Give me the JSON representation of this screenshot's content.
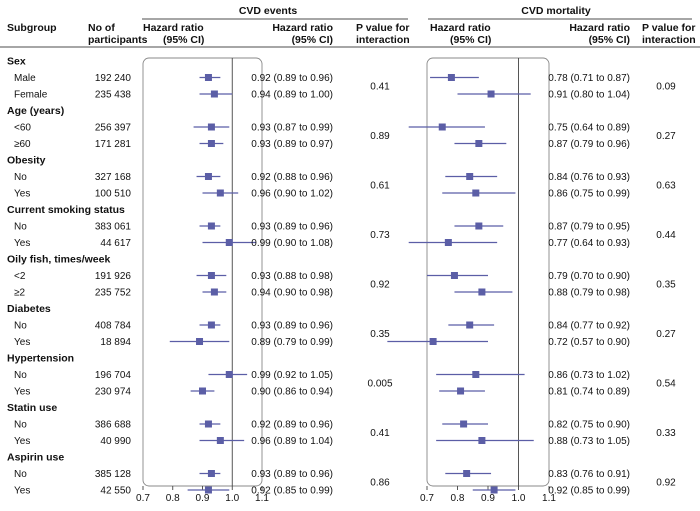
{
  "headers": {
    "subgroup": "Subgroup",
    "participants": [
      "No of",
      "participants"
    ],
    "panels": [
      "CVD events",
      "CVD mortality"
    ],
    "hr_plot": [
      "Hazard ratio",
      "(95% CI)"
    ],
    "hr_text": [
      "Hazard ratio",
      "(95% CI)"
    ],
    "p_interaction": [
      "P value for",
      "interaction"
    ]
  },
  "colors": {
    "marker": "#5b5ea6",
    "line": "#5b5ea6",
    "axis": "#444444",
    "frame": "#888888"
  },
  "chart_data": [
    {
      "type": "forest",
      "title": "CVD events",
      "xticks": [
        "0.7",
        "0.8",
        "0.9",
        "1.0",
        "1.1"
      ],
      "xlim": [
        0.7,
        1.1
      ],
      "reference_line": 1.0,
      "groups": [
        {
          "name": "Sex",
          "p_interaction": "0.41",
          "rows": [
            {
              "label": "Male",
              "n": "192 240",
              "hr": 0.92,
              "lo": 0.89,
              "hi": 0.96,
              "text": "0.92 (0.89 to 0.96)"
            },
            {
              "label": "Female",
              "n": "235 438",
              "hr": 0.94,
              "lo": 0.89,
              "hi": 1.0,
              "text": "0.94 (0.89 to 1.00)"
            }
          ]
        },
        {
          "name": "Age (years)",
          "p_interaction": "0.89",
          "rows": [
            {
              "label": "<60",
              "n": "256 397",
              "hr": 0.93,
              "lo": 0.87,
              "hi": 0.99,
              "text": "0.93 (0.87 to 0.99)"
            },
            {
              "label": "≥60",
              "n": "171 281",
              "hr": 0.93,
              "lo": 0.89,
              "hi": 0.97,
              "text": "0.93 (0.89 to 0.97)"
            }
          ]
        },
        {
          "name": "Obesity",
          "p_interaction": "0.61",
          "rows": [
            {
              "label": "No",
              "n": "327 168",
              "hr": 0.92,
              "lo": 0.88,
              "hi": 0.96,
              "text": "0.92 (0.88 to 0.96)"
            },
            {
              "label": "Yes",
              "n": "100 510",
              "hr": 0.96,
              "lo": 0.9,
              "hi": 1.02,
              "text": "0.96 (0.90 to 1.02)"
            }
          ]
        },
        {
          "name": "Current smoking status",
          "p_interaction": "0.73",
          "rows": [
            {
              "label": "No",
              "n": "383 061",
              "hr": 0.93,
              "lo": 0.89,
              "hi": 0.96,
              "text": "0.93 (0.89 to 0.96)"
            },
            {
              "label": "Yes",
              "n": "44 617",
              "hr": 0.99,
              "lo": 0.9,
              "hi": 1.08,
              "text": "0.99 (0.90 to 1.08)"
            }
          ]
        },
        {
          "name": "Oily fish, times/week",
          "p_interaction": "0.92",
          "rows": [
            {
              "label": "<2",
              "n": "191 926",
              "hr": 0.93,
              "lo": 0.88,
              "hi": 0.98,
              "text": "0.93 (0.88 to 0.98)"
            },
            {
              "label": "≥2",
              "n": "235 752",
              "hr": 0.94,
              "lo": 0.9,
              "hi": 0.98,
              "text": "0.94 (0.90 to 0.98)"
            }
          ]
        },
        {
          "name": "Diabetes",
          "p_interaction": "0.35",
          "rows": [
            {
              "label": "No",
              "n": "408 784",
              "hr": 0.93,
              "lo": 0.89,
              "hi": 0.96,
              "text": "0.93 (0.89 to 0.96)"
            },
            {
              "label": "Yes",
              "n": "18 894",
              "hr": 0.89,
              "lo": 0.79,
              "hi": 0.99,
              "text": "0.89 (0.79 to 0.99)"
            }
          ]
        },
        {
          "name": "Hypertension",
          "p_interaction": "0.005",
          "rows": [
            {
              "label": "No",
              "n": "196 704",
              "hr": 0.99,
              "lo": 0.92,
              "hi": 1.05,
              "text": "0.99 (0.92 to 1.05)"
            },
            {
              "label": "Yes",
              "n": "230 974",
              "hr": 0.9,
              "lo": 0.86,
              "hi": 0.94,
              "text": "0.90 (0.86 to 0.94)"
            }
          ]
        },
        {
          "name": "Statin use",
          "p_interaction": "0.41",
          "rows": [
            {
              "label": "No",
              "n": "386 688",
              "hr": 0.92,
              "lo": 0.89,
              "hi": 0.96,
              "text": "0.92 (0.89 to 0.96)"
            },
            {
              "label": "Yes",
              "n": "40 990",
              "hr": 0.96,
              "lo": 0.89,
              "hi": 1.04,
              "text": "0.96 (0.89 to 1.04)"
            }
          ]
        },
        {
          "name": "Aspirin use",
          "p_interaction": "0.86",
          "rows": [
            {
              "label": "No",
              "n": "385 128",
              "hr": 0.93,
              "lo": 0.89,
              "hi": 0.96,
              "text": "0.93 (0.89 to 0.96)"
            },
            {
              "label": "Yes",
              "n": "42 550",
              "hr": 0.92,
              "lo": 0.85,
              "hi": 0.99,
              "text": "0.92 (0.85 to 0.99)"
            }
          ]
        }
      ]
    },
    {
      "type": "forest",
      "title": "CVD mortality",
      "xticks": [
        "0.7",
        "0.8",
        "0.9",
        "1.0",
        "1.1"
      ],
      "xlim": [
        0.7,
        1.1
      ],
      "reference_line": 1.0,
      "groups": [
        {
          "name": "Sex",
          "p_interaction": "0.09",
          "rows": [
            {
              "label": "Male",
              "hr": 0.78,
              "lo": 0.71,
              "hi": 0.87,
              "text": "0.78 (0.71 to 0.87)"
            },
            {
              "label": "Female",
              "hr": 0.91,
              "lo": 0.8,
              "hi": 1.04,
              "text": "0.91 (0.80 to 1.04)"
            }
          ]
        },
        {
          "name": "Age (years)",
          "p_interaction": "0.27",
          "rows": [
            {
              "label": "<60",
              "hr": 0.75,
              "lo": 0.64,
              "hi": 0.89,
              "text": "0.75 (0.64 to 0.89)"
            },
            {
              "label": "≥60",
              "hr": 0.87,
              "lo": 0.79,
              "hi": 0.96,
              "text": "0.87 (0.79 to 0.96)"
            }
          ]
        },
        {
          "name": "Obesity",
          "p_interaction": "0.63",
          "rows": [
            {
              "label": "No",
              "hr": 0.84,
              "lo": 0.76,
              "hi": 0.93,
              "text": "0.84 (0.76 to 0.93)"
            },
            {
              "label": "Yes",
              "hr": 0.86,
              "lo": 0.75,
              "hi": 0.99,
              "text": "0.86 (0.75 to 0.99)"
            }
          ]
        },
        {
          "name": "Current smoking status",
          "p_interaction": "0.44",
          "rows": [
            {
              "label": "No",
              "hr": 0.87,
              "lo": 0.79,
              "hi": 0.95,
              "text": "0.87 (0.79 to 0.95)"
            },
            {
              "label": "Yes",
              "hr": 0.77,
              "lo": 0.64,
              "hi": 0.93,
              "text": "0.77 (0.64 to 0.93)"
            }
          ]
        },
        {
          "name": "Oily fish, times/week",
          "p_interaction": "0.35",
          "rows": [
            {
              "label": "<2",
              "hr": 0.79,
              "lo": 0.7,
              "hi": 0.9,
              "text": "0.79 (0.70 to 0.90)"
            },
            {
              "label": "≥2",
              "hr": 0.88,
              "lo": 0.79,
              "hi": 0.98,
              "text": "0.88 (0.79 to 0.98)"
            }
          ]
        },
        {
          "name": "Diabetes",
          "p_interaction": "0.27",
          "rows": [
            {
              "label": "No",
              "hr": 0.84,
              "lo": 0.77,
              "hi": 0.92,
              "text": "0.84 (0.77 to 0.92)"
            },
            {
              "label": "Yes",
              "hr": 0.72,
              "lo": 0.57,
              "hi": 0.9,
              "text": "0.72 (0.57 to 0.90)"
            }
          ]
        },
        {
          "name": "Hypertension",
          "p_interaction": "0.54",
          "rows": [
            {
              "label": "No",
              "hr": 0.86,
              "lo": 0.73,
              "hi": 1.02,
              "text": "0.86 (0.73 to 1.02)"
            },
            {
              "label": "Yes",
              "hr": 0.81,
              "lo": 0.74,
              "hi": 0.89,
              "text": "0.81 (0.74 to 0.89)"
            }
          ]
        },
        {
          "name": "Statin use",
          "p_interaction": "0.33",
          "rows": [
            {
              "label": "No",
              "hr": 0.82,
              "lo": 0.75,
              "hi": 0.9,
              "text": "0.82 (0.75 to 0.90)"
            },
            {
              "label": "Yes",
              "hr": 0.88,
              "lo": 0.73,
              "hi": 1.05,
              "text": "0.88 (0.73 to 1.05)"
            }
          ]
        },
        {
          "name": "Aspirin use",
          "p_interaction": "0.92",
          "rows": [
            {
              "label": "No",
              "hr": 0.83,
              "lo": 0.76,
              "hi": 0.91,
              "text": "0.83 (0.76 to 0.91)"
            },
            {
              "label": "Yes",
              "hr": 0.92,
              "lo": 0.85,
              "hi": 0.99,
              "text": "0.92 (0.85 to 0.99)"
            }
          ]
        }
      ]
    }
  ]
}
